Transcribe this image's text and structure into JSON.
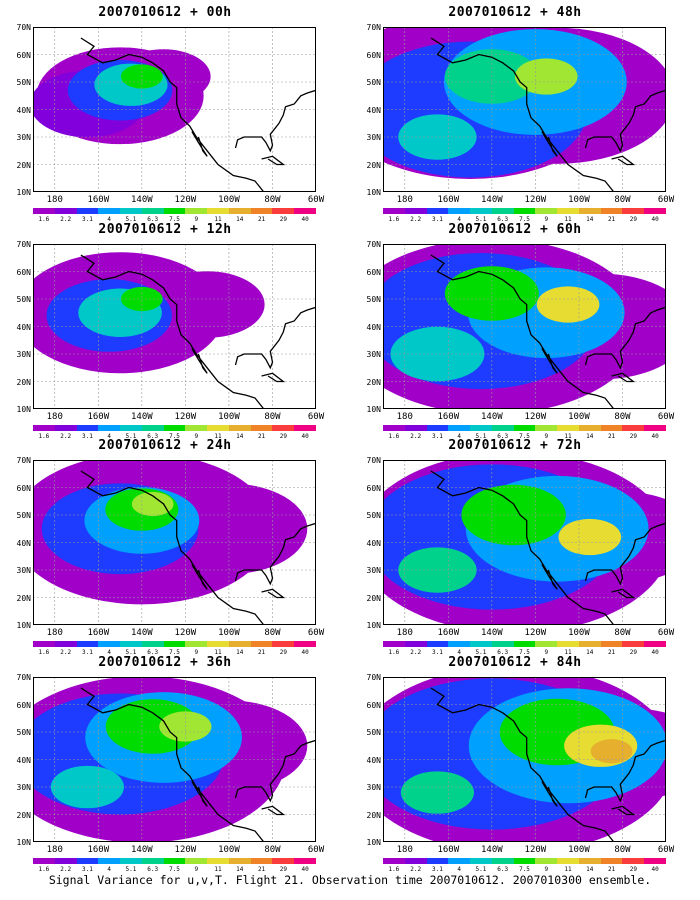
{
  "panels": [
    {
      "title": "2007010612 + 00h"
    },
    {
      "title": "2007010612 + 48h"
    },
    {
      "title": "2007010612 + 12h"
    },
    {
      "title": "2007010612 + 60h"
    },
    {
      "title": "2007010612 + 24h"
    },
    {
      "title": "2007010612 + 72h"
    },
    {
      "title": "2007010612 + 36h"
    },
    {
      "title": "2007010612 + 84h"
    }
  ],
  "lat_labels": [
    "70N",
    "60N",
    "50N",
    "40N",
    "30N",
    "20N",
    "10N"
  ],
  "lon_labels": [
    "180",
    "160W",
    "140W",
    "120W",
    "100W",
    "80W",
    "60W"
  ],
  "colorbar_levels": [
    "1.6",
    "2.2",
    "3.1",
    "4",
    "5.1",
    "6.3",
    "7.5",
    "9",
    "11",
    "14",
    "21",
    "29",
    "40"
  ],
  "colorbar_colors": [
    "#a000c8",
    "#8200dc",
    "#1e3cff",
    "#00a0ff",
    "#00c8c8",
    "#00d28c",
    "#00dc00",
    "#a0e632",
    "#e6dc32",
    "#e6af2d",
    "#f08228",
    "#fa3c3c",
    "#f00082"
  ],
  "caption": "Signal Variance for u,v,T. Flight 21. Observation time 2007010612. 2007010300 ensemble.",
  "map_extent": {
    "lon": [
      -190,
      -60
    ],
    "lat": [
      10,
      70
    ]
  },
  "panel_fields": [
    [
      {
        "lon": -150,
        "lat": 45,
        "r": 32,
        "level": 0
      },
      {
        "lon": -130,
        "lat": 52,
        "r": 18,
        "level": 0
      },
      {
        "lon": -165,
        "lat": 42,
        "r": 22,
        "level": 1
      },
      {
        "lon": -150,
        "lat": 47,
        "r": 20,
        "level": 2
      },
      {
        "lon": -145,
        "lat": 49,
        "r": 14,
        "level": 4
      },
      {
        "lon": -140,
        "lat": 52,
        "r": 8,
        "level": 6
      }
    ],
    [
      {
        "lon": -150,
        "lat": 45,
        "r": 55,
        "level": 0
      },
      {
        "lon": -110,
        "lat": 45,
        "r": 45,
        "level": 0
      },
      {
        "lon": -150,
        "lat": 40,
        "r": 45,
        "level": 2
      },
      {
        "lon": -120,
        "lat": 50,
        "r": 35,
        "level": 3
      },
      {
        "lon": -165,
        "lat": 30,
        "r": 15,
        "level": 4
      },
      {
        "lon": -140,
        "lat": 52,
        "r": 18,
        "level": 5
      },
      {
        "lon": -115,
        "lat": 52,
        "r": 12,
        "level": 7
      }
    ],
    [
      {
        "lon": -150,
        "lat": 45,
        "r": 40,
        "level": 0
      },
      {
        "lon": -110,
        "lat": 48,
        "r": 22,
        "level": 0
      },
      {
        "lon": -155,
        "lat": 44,
        "r": 24,
        "level": 2
      },
      {
        "lon": -150,
        "lat": 45,
        "r": 16,
        "level": 4
      },
      {
        "lon": -140,
        "lat": 50,
        "r": 8,
        "level": 6
      }
    ],
    [
      {
        "lon": -140,
        "lat": 40,
        "r": 58,
        "level": 0
      },
      {
        "lon": -90,
        "lat": 40,
        "r": 35,
        "level": 0
      },
      {
        "lon": -145,
        "lat": 42,
        "r": 45,
        "level": 2
      },
      {
        "lon": -115,
        "lat": 45,
        "r": 30,
        "level": 3
      },
      {
        "lon": -165,
        "lat": 30,
        "r": 18,
        "level": 4
      },
      {
        "lon": -140,
        "lat": 52,
        "r": 18,
        "level": 6
      },
      {
        "lon": -105,
        "lat": 48,
        "r": 12,
        "level": 8
      }
    ],
    [
      {
        "lon": -140,
        "lat": 45,
        "r": 50,
        "level": 0
      },
      {
        "lon": -100,
        "lat": 45,
        "r": 30,
        "level": 0
      },
      {
        "lon": -150,
        "lat": 45,
        "r": 30,
        "level": 2
      },
      {
        "lon": -140,
        "lat": 48,
        "r": 22,
        "level": 3
      },
      {
        "lon": -140,
        "lat": 52,
        "r": 14,
        "level": 6
      },
      {
        "lon": -135,
        "lat": 54,
        "r": 8,
        "level": 7
      }
    ],
    [
      {
        "lon": -130,
        "lat": 40,
        "r": 60,
        "level": 0
      },
      {
        "lon": -80,
        "lat": 42,
        "r": 30,
        "level": 0
      },
      {
        "lon": -140,
        "lat": 42,
        "r": 48,
        "level": 2
      },
      {
        "lon": -110,
        "lat": 45,
        "r": 35,
        "level": 3
      },
      {
        "lon": -165,
        "lat": 30,
        "r": 15,
        "level": 5
      },
      {
        "lon": -130,
        "lat": 50,
        "r": 20,
        "level": 6
      },
      {
        "lon": -95,
        "lat": 42,
        "r": 12,
        "level": 8
      }
    ],
    [
      {
        "lon": -140,
        "lat": 40,
        "r": 55,
        "level": 0
      },
      {
        "lon": -100,
        "lat": 45,
        "r": 30,
        "level": 0
      },
      {
        "lon": -150,
        "lat": 42,
        "r": 40,
        "level": 2
      },
      {
        "lon": -130,
        "lat": 48,
        "r": 30,
        "level": 3
      },
      {
        "lon": -165,
        "lat": 30,
        "r": 14,
        "level": 4
      },
      {
        "lon": -135,
        "lat": 52,
        "r": 18,
        "level": 6
      },
      {
        "lon": -120,
        "lat": 52,
        "r": 10,
        "level": 7
      }
    ],
    [
      {
        "lon": -130,
        "lat": 40,
        "r": 62,
        "level": 0
      },
      {
        "lon": -75,
        "lat": 42,
        "r": 30,
        "level": 0
      },
      {
        "lon": -140,
        "lat": 42,
        "r": 50,
        "level": 2
      },
      {
        "lon": -105,
        "lat": 45,
        "r": 38,
        "level": 3
      },
      {
        "lon": -165,
        "lat": 28,
        "r": 14,
        "level": 5
      },
      {
        "lon": -110,
        "lat": 50,
        "r": 22,
        "level": 6
      },
      {
        "lon": -90,
        "lat": 45,
        "r": 14,
        "level": 8
      },
      {
        "lon": -85,
        "lat": 43,
        "r": 8,
        "level": 9
      }
    ]
  ]
}
